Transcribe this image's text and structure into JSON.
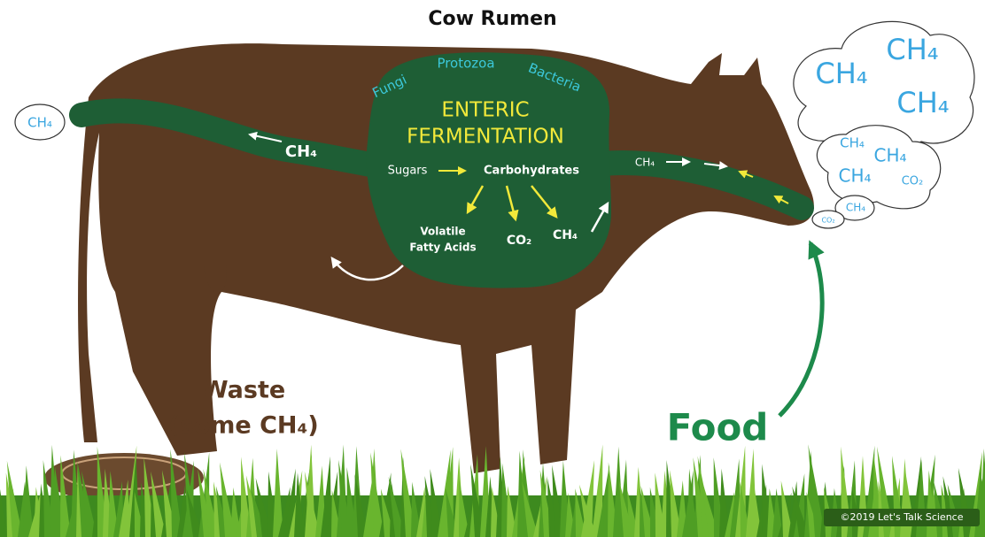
{
  "title": "Cow Rumen",
  "rumen": {
    "microbes": [
      "Fungi",
      "Protozoa",
      "Bacteria"
    ],
    "heading": [
      "ENTERIC",
      "FERMENTATION"
    ],
    "flow": {
      "from": "Sugars",
      "to": "Carbohydrates"
    },
    "products": [
      "Volatile",
      "Fatty Acids",
      "CO₂",
      "CH₄"
    ]
  },
  "tract_labels": [
    "CH₄",
    "CH₄"
  ],
  "tail_bubble": "CH₄",
  "big_cloud": [
    "CH₄",
    "CH₄",
    "CH₄"
  ],
  "small_cloud": [
    "CH₄",
    "CH₄",
    "CH₄",
    "CO₂"
  ],
  "tiny_clouds": [
    "CH₄",
    "CO₂"
  ],
  "waste": [
    "Waste",
    "(some CH₄)"
  ],
  "food": "Food",
  "credit": "©2019 Let's Talk Science"
}
